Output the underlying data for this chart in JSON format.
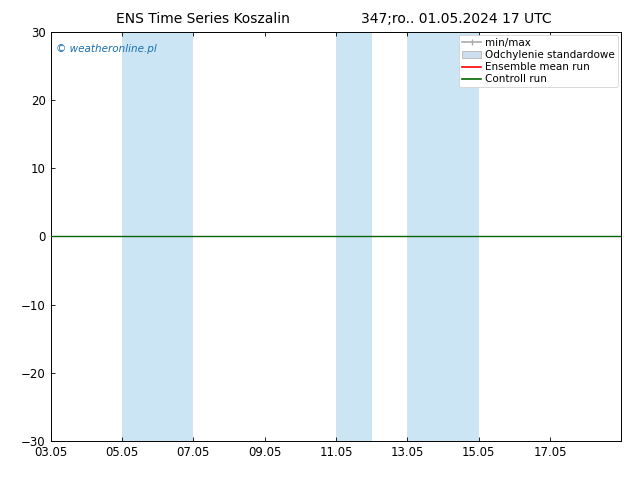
{
  "title_left": "ENS Time Series Koszalin",
  "title_right": "347;ro.. 01.05.2024 17 UTC",
  "ylim": [
    -30,
    30
  ],
  "yticks": [
    -30,
    -20,
    -10,
    0,
    10,
    20,
    30
  ],
  "xlim": [
    0,
    16
  ],
  "xtick_labels": [
    "03.05",
    "05.05",
    "07.05",
    "09.05",
    "11.05",
    "13.05",
    "15.05",
    "17.05"
  ],
  "xtick_positions": [
    0,
    2,
    4,
    6,
    8,
    10,
    12,
    14
  ],
  "watermark": "© weatheronline.pl",
  "legend_items": [
    {
      "label": "min/max",
      "color": "#aaaaaa",
      "lw": 1.2,
      "type": "hline_tick"
    },
    {
      "label": "Odchylenie standardowe",
      "color": "#ccddee",
      "lw": 1.0,
      "type": "rect"
    },
    {
      "label": "Ensemble mean run",
      "color": "#ff0000",
      "lw": 1.2,
      "type": "line"
    },
    {
      "label": "Controll run",
      "color": "#006600",
      "lw": 1.2,
      "type": "line"
    }
  ],
  "shaded_regions": [
    {
      "xstart": 2.0,
      "xend": 4.0,
      "color": "#cce5f5"
    },
    {
      "xstart": 8.0,
      "xend": 9.0,
      "color": "#cce5f5"
    },
    {
      "xstart": 10.0,
      "xend": 12.0,
      "color": "#cce5f5"
    }
  ],
  "zero_line_color": "#000000",
  "control_line_color": "#006600",
  "background_color": "#ffffff",
  "plot_bg_color": "#ffffff",
  "title_fontsize": 10,
  "tick_fontsize": 8.5,
  "watermark_color": "#1a6faf",
  "watermark_fontsize": 7.5,
  "legend_fontsize": 7.5
}
